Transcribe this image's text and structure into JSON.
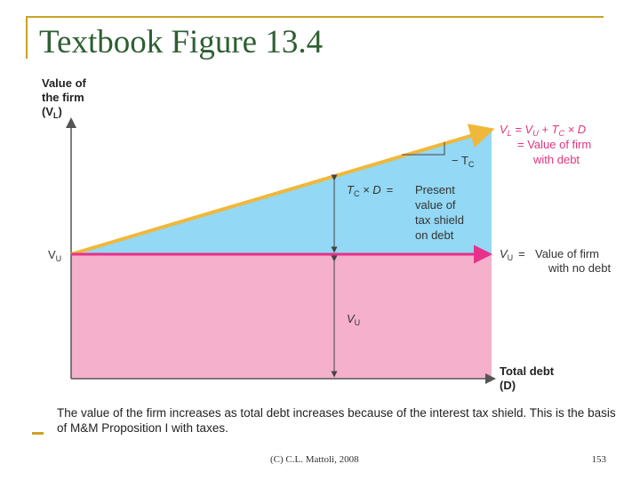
{
  "slide": {
    "title": "Textbook Figure 13.4",
    "footer_credit": "(C) C.L. Mattoli, 2008",
    "page_number": "153"
  },
  "figure": {
    "y_axis_label": [
      "Value of",
      "the firm",
      "(V",
      "L",
      ")"
    ],
    "x_axis_label": [
      "Total debt",
      "(D)"
    ],
    "vu_axis_tick": "V",
    "vu_axis_tick_sub": "U",
    "levered_line_formula": {
      "v": "V",
      "l": "L",
      "eq": " = V",
      "u": "U",
      "plus": " + T",
      "c": "C",
      "times": " × D"
    },
    "levered_line_desc": [
      "= Value of firm",
      "with debt"
    ],
    "slope_label": {
      "minus": "− T",
      "c": "C"
    },
    "tax_shield_label": {
      "t": "T",
      "c": "C",
      "times": " × D",
      "eq": "=",
      "lines": [
        "Present",
        "value of",
        "tax shield",
        "on debt"
      ]
    },
    "unlevered_line_label": {
      "v": "V",
      "u": "U",
      "eq": "=",
      "lines": [
        "Value of firm",
        "with no debt"
      ]
    },
    "vu_region_label": "V",
    "vu_region_label_sub": "U",
    "caption": "The value of the firm increases as total debt increases because of the interest tax shield. This is the basis of M&M Proposition I with taxes.",
    "colors": {
      "tax_shield_region": "#93d8f4",
      "vu_region": "#f5b0cb",
      "levered_line": "#f0b83a",
      "unlevered_line": "#e8318a",
      "pink_text": "#e0357f",
      "axis": "#555555",
      "deco": "#c9a227"
    }
  }
}
